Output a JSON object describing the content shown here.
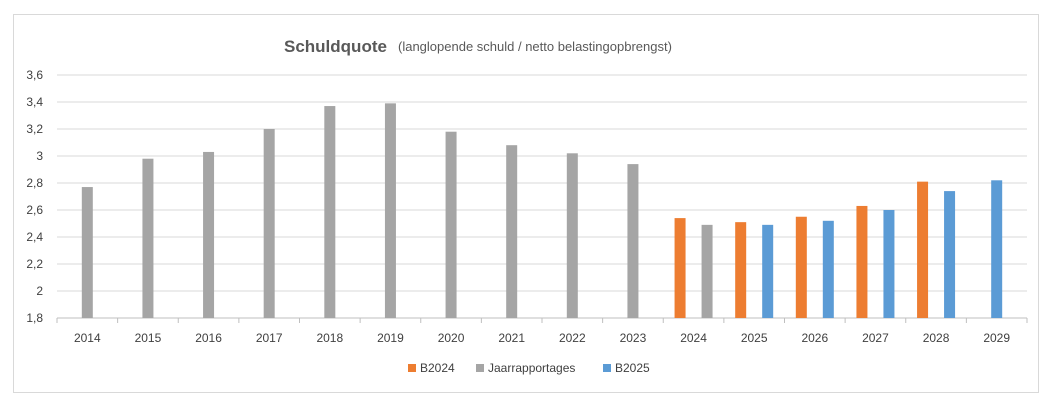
{
  "chart_data": {
    "type": "bar",
    "title": "Schuldquote",
    "subtitle": "(langlopende schuld / netto belastingopbrengst)",
    "xlabel": "",
    "ylabel": "",
    "categories": [
      "2014",
      "2015",
      "2016",
      "2017",
      "2018",
      "2019",
      "2020",
      "2021",
      "2022",
      "2023",
      "2024",
      "2025",
      "2026",
      "2027",
      "2028",
      "2029"
    ],
    "ylim": [
      1.8,
      3.6
    ],
    "yticks": [
      1.8,
      2,
      2.2,
      2.4,
      2.6,
      2.8,
      3,
      3.2,
      3.4,
      3.6
    ],
    "ytick_labels": [
      "1,8",
      "2",
      "2,2",
      "2,4",
      "2,6",
      "2,8",
      "3",
      "3,2",
      "3,4",
      "3,6"
    ],
    "grid": true,
    "legend_position": "bottom",
    "series": [
      {
        "name": "B2024",
        "color": "#ed7d31",
        "values": [
          null,
          null,
          null,
          null,
          null,
          null,
          null,
          null,
          null,
          null,
          2.54,
          2.51,
          2.55,
          2.63,
          2.81,
          null
        ]
      },
      {
        "name": "Jaarrapportages",
        "color": "#a5a5a5",
        "values": [
          2.77,
          2.98,
          3.03,
          3.2,
          3.37,
          3.39,
          3.18,
          3.08,
          3.02,
          2.94,
          2.49,
          null,
          null,
          null,
          null,
          null
        ]
      },
      {
        "name": "B2025",
        "color": "#5b9bd5",
        "values": [
          null,
          null,
          null,
          null,
          null,
          null,
          null,
          null,
          null,
          null,
          null,
          2.49,
          2.52,
          2.6,
          2.74,
          2.82
        ]
      }
    ]
  }
}
